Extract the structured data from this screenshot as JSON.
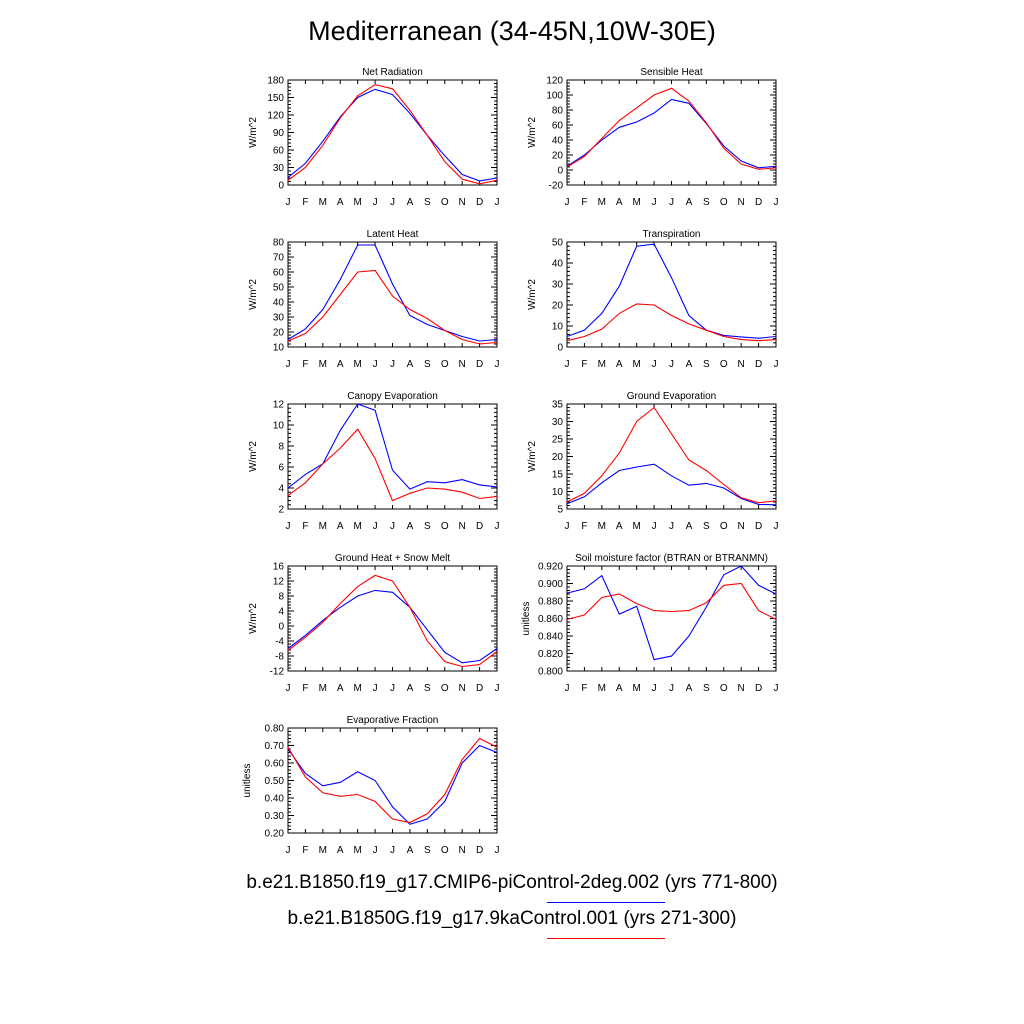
{
  "title": "Mediterranean (34-45N,10W-30E)",
  "legend": {
    "entries": [
      {
        "label": "b.e21.B1850.f19_g17.CMIP6-piControl-2deg.002 (yrs 771-800)",
        "color": "#0000ff"
      },
      {
        "label": "b.e21.B1850G.f19_g17.9kaControl.001 (yrs 271-300)",
        "color": "#ff0000"
      }
    ]
  },
  "colors": {
    "series_a": "#0000ff",
    "series_b": "#ff0000"
  },
  "chart_data": [
    {
      "type": "line",
      "title": "Net Radiation",
      "ylabel": "W/m^2",
      "categories": [
        "J",
        "F",
        "M",
        "A",
        "M",
        "J",
        "J",
        "A",
        "S",
        "O",
        "N",
        "D",
        "J"
      ],
      "ylim": [
        0,
        180
      ],
      "yticks": [
        0,
        30,
        60,
        90,
        120,
        150,
        180
      ],
      "ytick_labels": [
        "0",
        "30",
        "60",
        "90",
        "120",
        "150",
        "180"
      ],
      "series": [
        {
          "name": "b.e21.B1850.f19_g17.CMIP6-piControl-2deg.002 (yrs 771-800)",
          "color": "#0000ff",
          "values": [
            13,
            37,
            75,
            117,
            150,
            164,
            155,
            123,
            85,
            50,
            18,
            7,
            12
          ]
        },
        {
          "name": "b.e21.B1850G.f19_g17.9kaControl.001 (yrs 271-300)",
          "color": "#ff0000",
          "values": [
            8,
            30,
            68,
            115,
            153,
            172,
            165,
            128,
            85,
            40,
            10,
            2,
            8
          ]
        }
      ]
    },
    {
      "type": "line",
      "title": "Sensible Heat",
      "ylabel": "W/m^2",
      "categories": [
        "J",
        "F",
        "M",
        "A",
        "M",
        "J",
        "J",
        "A",
        "S",
        "O",
        "N",
        "D",
        "J"
      ],
      "ylim": [
        -20,
        120
      ],
      "yticks": [
        -20,
        0,
        20,
        40,
        60,
        80,
        100,
        120
      ],
      "ytick_labels": [
        "-20",
        "0",
        "20",
        "40",
        "60",
        "80",
        "100",
        "120"
      ],
      "series": [
        {
          "name": "b.e21.B1850.f19_g17.CMIP6-piControl-2deg.002 (yrs 771-800)",
          "color": "#0000ff",
          "values": [
            5,
            20,
            40,
            57,
            64,
            76,
            94,
            89,
            62,
            32,
            12,
            3,
            5
          ]
        },
        {
          "name": "b.e21.B1850G.f19_g17.9kaControl.001 (yrs 271-300)",
          "color": "#ff0000",
          "values": [
            4,
            18,
            42,
            66,
            83,
            100,
            109,
            92,
            63,
            29,
            8,
            1,
            3
          ]
        }
      ]
    },
    {
      "type": "line",
      "title": "Latent Heat",
      "ylabel": "W/m^2",
      "categories": [
        "J",
        "F",
        "M",
        "A",
        "M",
        "J",
        "J",
        "A",
        "S",
        "O",
        "N",
        "D",
        "J"
      ],
      "ylim": [
        10,
        80
      ],
      "yticks": [
        10,
        20,
        30,
        40,
        50,
        60,
        70,
        80
      ],
      "ytick_labels": [
        "10",
        "20",
        "30",
        "40",
        "50",
        "60",
        "70",
        "80"
      ],
      "series": [
        {
          "name": "b.e21.B1850.f19_g17.CMIP6-piControl-2deg.002 (yrs 771-800)",
          "color": "#0000ff",
          "values": [
            15,
            22,
            35,
            55,
            78,
            78,
            52,
            31,
            25,
            21,
            17,
            14,
            15
          ]
        },
        {
          "name": "b.e21.B1850G.f19_g17.9kaControl.001 (yrs 271-300)",
          "color": "#ff0000",
          "values": [
            14,
            19,
            30,
            45,
            60,
            61,
            44,
            35,
            29,
            21,
            15,
            12,
            13
          ]
        }
      ]
    },
    {
      "type": "line",
      "title": "Transpiration",
      "ylabel": "W/m^2",
      "categories": [
        "J",
        "F",
        "M",
        "A",
        "M",
        "J",
        "J",
        "A",
        "S",
        "O",
        "N",
        "D",
        "J"
      ],
      "ylim": [
        0,
        50
      ],
      "yticks": [
        0,
        10,
        20,
        30,
        40,
        50
      ],
      "ytick_labels": [
        "0",
        "10",
        "20",
        "30",
        "40",
        "50"
      ],
      "series": [
        {
          "name": "b.e21.B1850.f19_g17.CMIP6-piControl-2deg.002 (yrs 771-800)",
          "color": "#0000ff",
          "values": [
            5,
            8,
            16,
            29,
            48,
            49,
            33,
            15,
            8,
            5.5,
            4.8,
            4.2,
            5
          ]
        },
        {
          "name": "b.e21.B1850G.f19_g17.9kaControl.001 (yrs 271-300)",
          "color": "#ff0000",
          "values": [
            3,
            5,
            8.5,
            16,
            20.5,
            20,
            15,
            11,
            8,
            5,
            3.5,
            3,
            3.5
          ]
        }
      ]
    },
    {
      "type": "line",
      "title": "Canopy Evaporation",
      "ylabel": "W/m^2",
      "categories": [
        "J",
        "F",
        "M",
        "A",
        "M",
        "J",
        "J",
        "A",
        "S",
        "O",
        "N",
        "D",
        "J"
      ],
      "ylim": [
        2,
        12
      ],
      "yticks": [
        2,
        4,
        6,
        8,
        10,
        12
      ],
      "ytick_labels": [
        "2",
        "4",
        "6",
        "8",
        "10",
        "12"
      ],
      "series": [
        {
          "name": "b.e21.B1850.f19_g17.CMIP6-piControl-2deg.002 (yrs 771-800)",
          "color": "#0000ff",
          "values": [
            4,
            5.3,
            6.3,
            9.5,
            12,
            11.4,
            5.7,
            3.9,
            4.6,
            4.5,
            4.8,
            4.3,
            4.1
          ]
        },
        {
          "name": "b.e21.B1850G.f19_g17.9kaControl.001 (yrs 271-300)",
          "color": "#ff0000",
          "values": [
            3.3,
            4.5,
            6.3,
            7.8,
            9.6,
            6.8,
            2.8,
            3.5,
            4,
            3.9,
            3.6,
            3,
            3.2
          ]
        }
      ]
    },
    {
      "type": "line",
      "title": "Ground Evaporation",
      "ylabel": "W/m^2",
      "categories": [
        "J",
        "F",
        "M",
        "A",
        "M",
        "J",
        "J",
        "A",
        "S",
        "O",
        "N",
        "D",
        "J"
      ],
      "ylim": [
        5,
        35
      ],
      "yticks": [
        5,
        10,
        15,
        20,
        25,
        30,
        35
      ],
      "ytick_labels": [
        "5",
        "10",
        "15",
        "20",
        "25",
        "30",
        "35"
      ],
      "series": [
        {
          "name": "b.e21.B1850.f19_g17.CMIP6-piControl-2deg.002 (yrs 771-800)",
          "color": "#0000ff",
          "values": [
            6.5,
            8.5,
            12.5,
            16,
            17,
            17.8,
            14.5,
            11.8,
            12.3,
            11,
            8,
            6.3,
            6.2
          ]
        },
        {
          "name": "b.e21.B1850G.f19_g17.9kaControl.001 (yrs 271-300)",
          "color": "#ff0000",
          "values": [
            7,
            9.5,
            14.5,
            21,
            30,
            34,
            26.5,
            19,
            16,
            12,
            8.2,
            6.8,
            7.3
          ]
        }
      ]
    },
    {
      "type": "line",
      "title": "Ground Heat + Snow Melt",
      "ylabel": "W/m^2",
      "categories": [
        "J",
        "F",
        "M",
        "A",
        "M",
        "J",
        "J",
        "A",
        "S",
        "O",
        "N",
        "D",
        "J"
      ],
      "ylim": [
        -12,
        16
      ],
      "yticks": [
        -12,
        -8,
        -4,
        0,
        4,
        8,
        12,
        16
      ],
      "ytick_labels": [
        "-12",
        "-8",
        "-4",
        "0",
        "4",
        "8",
        "12",
        "16"
      ],
      "series": [
        {
          "name": "b.e21.B1850.f19_g17.CMIP6-piControl-2deg.002 (yrs 771-800)",
          "color": "#0000ff",
          "values": [
            -6,
            -2.5,
            1.5,
            5,
            8,
            9.5,
            9,
            5,
            -1,
            -7,
            -9.8,
            -9.2,
            -6
          ]
        },
        {
          "name": "b.e21.B1850G.f19_g17.9kaControl.001 (yrs 271-300)",
          "color": "#ff0000",
          "values": [
            -6.5,
            -3,
            1,
            6,
            10.5,
            13.5,
            12,
            5,
            -4,
            -9.5,
            -10.8,
            -10.3,
            -6.8
          ]
        }
      ]
    },
    {
      "type": "line",
      "title": "Soil moisture factor (BTRAN or BTRANMN)",
      "ylabel": "unitless",
      "categories": [
        "J",
        "F",
        "M",
        "A",
        "M",
        "J",
        "J",
        "A",
        "S",
        "O",
        "N",
        "D",
        "J"
      ],
      "ylim": [
        0.8,
        0.92
      ],
      "yticks": [
        0.8,
        0.82,
        0.84,
        0.86,
        0.88,
        0.9,
        0.92
      ],
      "ytick_labels": [
        "0.800",
        "0.820",
        "0.840",
        "0.860",
        "0.880",
        "0.900",
        "0.920"
      ],
      "series": [
        {
          "name": "b.e21.B1850.f19_g17.CMIP6-piControl-2deg.002 (yrs 771-800)",
          "color": "#0000ff",
          "values": [
            0.889,
            0.894,
            0.909,
            0.865,
            0.874,
            0.813,
            0.817,
            0.84,
            0.873,
            0.91,
            0.92,
            0.898,
            0.888
          ]
        },
        {
          "name": "b.e21.B1850G.f19_g17.9kaControl.001 (yrs 271-300)",
          "color": "#ff0000",
          "values": [
            0.859,
            0.864,
            0.884,
            0.888,
            0.877,
            0.869,
            0.868,
            0.869,
            0.878,
            0.898,
            0.9,
            0.869,
            0.859
          ]
        }
      ]
    },
    {
      "type": "line",
      "title": "Evaporative Fraction",
      "ylabel": "unitless",
      "categories": [
        "J",
        "F",
        "M",
        "A",
        "M",
        "J",
        "J",
        "A",
        "S",
        "O",
        "N",
        "D",
        "J"
      ],
      "ylim": [
        0.2,
        0.8
      ],
      "yticks": [
        0.2,
        0.3,
        0.4,
        0.5,
        0.6,
        0.7,
        0.8
      ],
      "ytick_labels": [
        "0.20",
        "0.30",
        "0.40",
        "0.50",
        "0.60",
        "0.70",
        "0.80"
      ],
      "series": [
        {
          "name": "b.e21.B1850.f19_g17.CMIP6-piControl-2deg.002 (yrs 771-800)",
          "color": "#0000ff",
          "values": [
            0.68,
            0.54,
            0.47,
            0.49,
            0.55,
            0.5,
            0.35,
            0.25,
            0.28,
            0.38,
            0.6,
            0.7,
            0.66
          ]
        },
        {
          "name": "b.e21.B1850G.f19_g17.9kaControl.001 (yrs 271-300)",
          "color": "#ff0000",
          "values": [
            0.69,
            0.52,
            0.43,
            0.41,
            0.42,
            0.38,
            0.28,
            0.26,
            0.31,
            0.42,
            0.62,
            0.74,
            0.69
          ]
        }
      ]
    }
  ]
}
